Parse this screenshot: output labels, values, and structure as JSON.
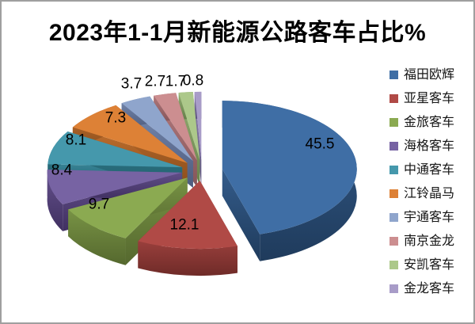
{
  "title": "2023年1-1月新能源公路客车占比%",
  "chart_data": {
    "type": "pie",
    "style": "3d-exploded",
    "title": "2023年1-1月新能源公路客车占比%",
    "value_suffix": "%",
    "legend_position": "right",
    "start_angle_deg": 0,
    "direction": "clockwise",
    "total": 100.0,
    "series": [
      {
        "name": "福田欧辉",
        "value": 45.5,
        "color": "#3F6EA5",
        "side_color": "#1F3B5C"
      },
      {
        "name": "亚星客车",
        "value": 12.1,
        "color": "#B04A46",
        "side_color": "#6F2B28"
      },
      {
        "name": "金旅客车",
        "value": 9.7,
        "color": "#8BAA51",
        "side_color": "#55682E"
      },
      {
        "name": "海格客车",
        "value": 8.4,
        "color": "#7763A3",
        "side_color": "#403061"
      },
      {
        "name": "中通客车",
        "value": 8.1,
        "color": "#4598AC",
        "side_color": "#1D5A66"
      },
      {
        "name": "江铃晶马",
        "value": 7.3,
        "color": "#DD8136",
        "side_color": "#8A4D1C"
      },
      {
        "name": "宇通客车",
        "value": 3.7,
        "color": "#8FA5CC",
        "side_color": "#4E5C7E"
      },
      {
        "name": "南京金龙",
        "value": 2.7,
        "color": "#CC8E90",
        "side_color": "#85555A"
      },
      {
        "name": "安凯客车",
        "value": 1.7,
        "color": "#ACC88A",
        "side_color": "#66804A"
      },
      {
        "name": "金龙客车",
        "value": 0.8,
        "color": "#A89CC8",
        "side_color": "#5E5380"
      }
    ]
  }
}
